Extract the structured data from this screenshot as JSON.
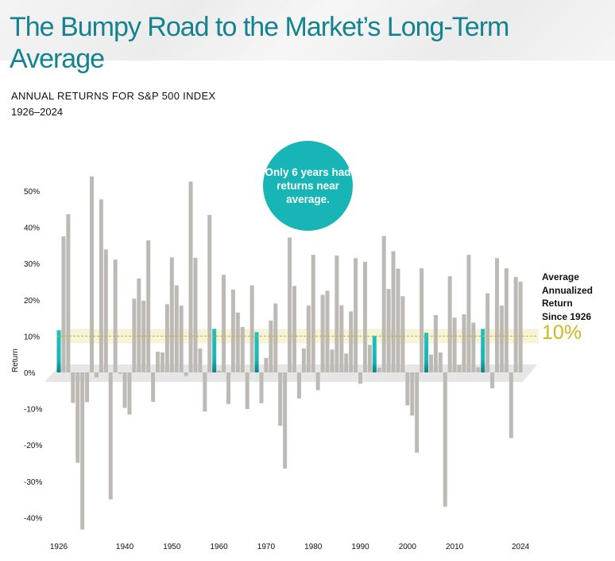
{
  "header": {
    "title": "The Bumpy Road to the Market’s Long-Term Average"
  },
  "subtitle": {
    "line1": "ANNUAL RETURNS FOR S&P 500 INDEX",
    "line2": "1926–2024"
  },
  "callout": {
    "text": "Only 6 years had returns near average."
  },
  "average": {
    "label_lines": [
      "Average",
      "Annualized",
      "Return",
      "Since 1926"
    ],
    "value": "10%"
  },
  "colors": {
    "bar": "#bdbab5",
    "highlight": "#1ab9b9",
    "band": "#f7f3d8",
    "avg_line": "#c9b41c",
    "floor": "#e6e6e6",
    "title": "#14828f"
  },
  "chart_data": {
    "type": "bar",
    "ylabel": "Return",
    "ylim": [
      -45,
      55
    ],
    "yticks": [
      -40,
      -30,
      -20,
      -10,
      0,
      10,
      20,
      30,
      40,
      50
    ],
    "ytick_labels": [
      "-40%",
      "-30%",
      "-20%",
      "-10%",
      "0%",
      "10%",
      "20%",
      "30%",
      "40%",
      "50%"
    ],
    "xtick_labels": [
      "1926",
      "1940",
      "1950",
      "1960",
      "1970",
      "1980",
      "1990",
      "2000",
      "2010",
      "2024"
    ],
    "average": 10,
    "near_average_band": [
      8,
      12
    ],
    "start_year": 1926,
    "highlight_years": [
      1926,
      1959,
      1968,
      1993,
      2004,
      2016
    ],
    "values": [
      11.6,
      37.5,
      43.6,
      -8.4,
      -24.9,
      -43.3,
      -8.2,
      54.0,
      -1.4,
      47.7,
      33.9,
      -35.0,
      31.1,
      -0.4,
      -9.8,
      -11.6,
      20.3,
      25.9,
      19.8,
      36.4,
      -8.1,
      5.7,
      5.5,
      18.8,
      31.7,
      24.0,
      18.4,
      -1.0,
      52.6,
      31.6,
      6.6,
      -10.8,
      43.4,
      12.0,
      0.5,
      26.9,
      -8.7,
      22.8,
      16.5,
      12.5,
      -10.1,
      24.0,
      11.1,
      -8.5,
      4.0,
      14.3,
      19.0,
      -14.7,
      -26.5,
      37.2,
      23.8,
      -7.2,
      6.6,
      18.4,
      32.4,
      -4.9,
      21.4,
      22.5,
      6.3,
      32.2,
      18.5,
      5.2,
      16.8,
      31.5,
      -3.1,
      30.5,
      7.6,
      10.1,
      1.3,
      37.6,
      23.0,
      33.4,
      28.6,
      21.0,
      -9.1,
      -11.9,
      -22.1,
      28.7,
      10.9,
      4.9,
      15.8,
      5.5,
      -37.0,
      26.5,
      15.1,
      2.1,
      16.0,
      32.4,
      13.7,
      1.4,
      12.0,
      21.8,
      -4.4,
      31.5,
      18.4,
      28.7,
      -18.1,
      26.3,
      25.0
    ]
  }
}
